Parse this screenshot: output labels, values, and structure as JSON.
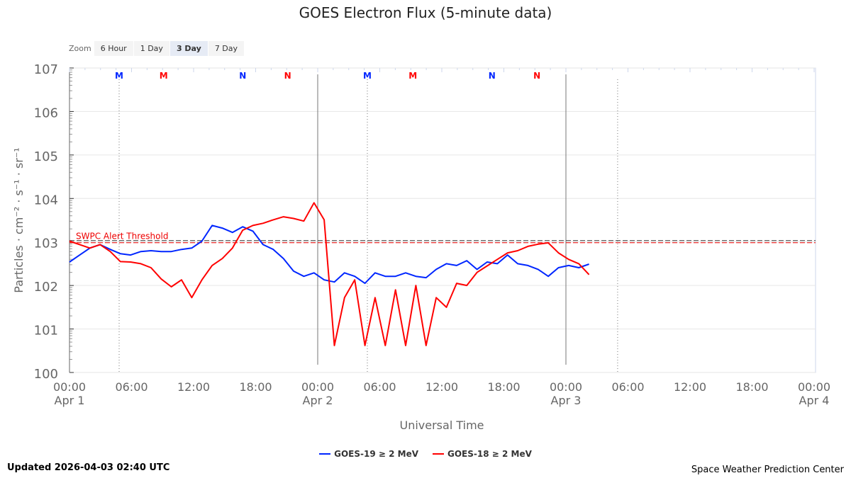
{
  "title": "GOES Electron Flux (5-minute data)",
  "zoom": {
    "label": "Zoom",
    "buttons": [
      "6 Hour",
      "1 Day",
      "3 Day",
      "7 Day"
    ],
    "selected": "3 Day"
  },
  "updated": "Updated 2026-04-03 02:40 UTC",
  "credit": "Space Weather Prediction Center",
  "chart_data": {
    "type": "line",
    "title": "GOES Electron Flux (5-minute data)",
    "xlabel": "Universal Time",
    "ylabel": "Particles · cm⁻² · s⁻¹ · sr⁻¹",
    "yscale": "log",
    "ylim_log10": [
      0,
      7
    ],
    "xlim_hours": [
      0,
      72
    ],
    "y_ticks": [
      "100",
      "101",
      "102",
      "103",
      "104",
      "105",
      "106",
      "107"
    ],
    "x_ticks": [
      {
        "h": 0,
        "time": "00:00",
        "date": "Apr 1"
      },
      {
        "h": 6,
        "time": "06:00",
        "date": ""
      },
      {
        "h": 12,
        "time": "12:00",
        "date": ""
      },
      {
        "h": 18,
        "time": "18:00",
        "date": ""
      },
      {
        "h": 24,
        "time": "00:00",
        "date": "Apr 2"
      },
      {
        "h": 30,
        "time": "06:00",
        "date": ""
      },
      {
        "h": 36,
        "time": "12:00",
        "date": ""
      },
      {
        "h": 42,
        "time": "18:00",
        "date": ""
      },
      {
        "h": 48,
        "time": "00:00",
        "date": "Apr 3"
      },
      {
        "h": 54,
        "time": "06:00",
        "date": ""
      },
      {
        "h": 60,
        "time": "12:00",
        "date": ""
      },
      {
        "h": 66,
        "time": "18:00",
        "date": ""
      },
      {
        "h": 72,
        "time": "00:00",
        "date": "Apr 4"
      }
    ],
    "threshold": {
      "label": "SWPC Alert Threshold",
      "log10": 3
    },
    "day_lines_hours": [
      24,
      48
    ],
    "dotted_lines_hours": [
      4.8,
      28.8,
      53
    ],
    "markers": [
      {
        "h": 4.8,
        "text": "M",
        "color": "#0026ff"
      },
      {
        "h": 9.1,
        "text": "M",
        "color": "#ff0000"
      },
      {
        "h": 16.75,
        "text": "N",
        "color": "#0026ff"
      },
      {
        "h": 21.1,
        "text": "N",
        "color": "#ff0000"
      },
      {
        "h": 28.8,
        "text": "M",
        "color": "#0026ff"
      },
      {
        "h": 33.2,
        "text": "M",
        "color": "#ff0000"
      },
      {
        "h": 40.85,
        "text": "N",
        "color": "#0026ff"
      },
      {
        "h": 45.2,
        "text": "N",
        "color": "#ff0000"
      }
    ],
    "series": [
      {
        "name": "GOES-19 ≥ 2 MeV",
        "color": "#0026ff",
        "start_hour": 0,
        "step_hours": 0.985,
        "log10_values": [
          2.54,
          2.7,
          2.86,
          2.94,
          2.83,
          2.73,
          2.7,
          2.78,
          2.8,
          2.78,
          2.78,
          2.83,
          2.86,
          3.02,
          3.38,
          3.32,
          3.22,
          3.35,
          3.25,
          2.94,
          2.83,
          2.62,
          2.33,
          2.21,
          2.29,
          2.13,
          2.08,
          2.29,
          2.21,
          2.05,
          2.29,
          2.21,
          2.21,
          2.29,
          2.21,
          2.18,
          2.37,
          2.5,
          2.46,
          2.57,
          2.37,
          2.54,
          2.5,
          2.7,
          2.5,
          2.46,
          2.37,
          2.21,
          2.41,
          2.46,
          2.41,
          2.49
        ]
      },
      {
        "name": "GOES-18 ≥ 2 MeV",
        "color": "#ff0000",
        "start_hour": 0,
        "step_hours": 0.985,
        "log10_values": [
          3.02,
          2.94,
          2.86,
          2.94,
          2.78,
          2.55,
          2.54,
          2.5,
          2.41,
          2.15,
          1.97,
          2.13,
          1.72,
          2.13,
          2.46,
          2.62,
          2.86,
          3.27,
          3.38,
          3.43,
          3.51,
          3.58,
          3.54,
          3.48,
          3.9,
          3.51,
          0.62,
          1.72,
          2.13,
          0.62,
          1.72,
          0.62,
          1.9,
          0.62,
          2.0,
          0.62,
          1.72,
          1.5,
          2.05,
          2.0,
          2.3,
          2.45,
          2.6,
          2.75,
          2.8,
          2.9,
          2.95,
          2.98,
          2.75,
          2.6,
          2.5,
          2.25
        ]
      }
    ]
  }
}
